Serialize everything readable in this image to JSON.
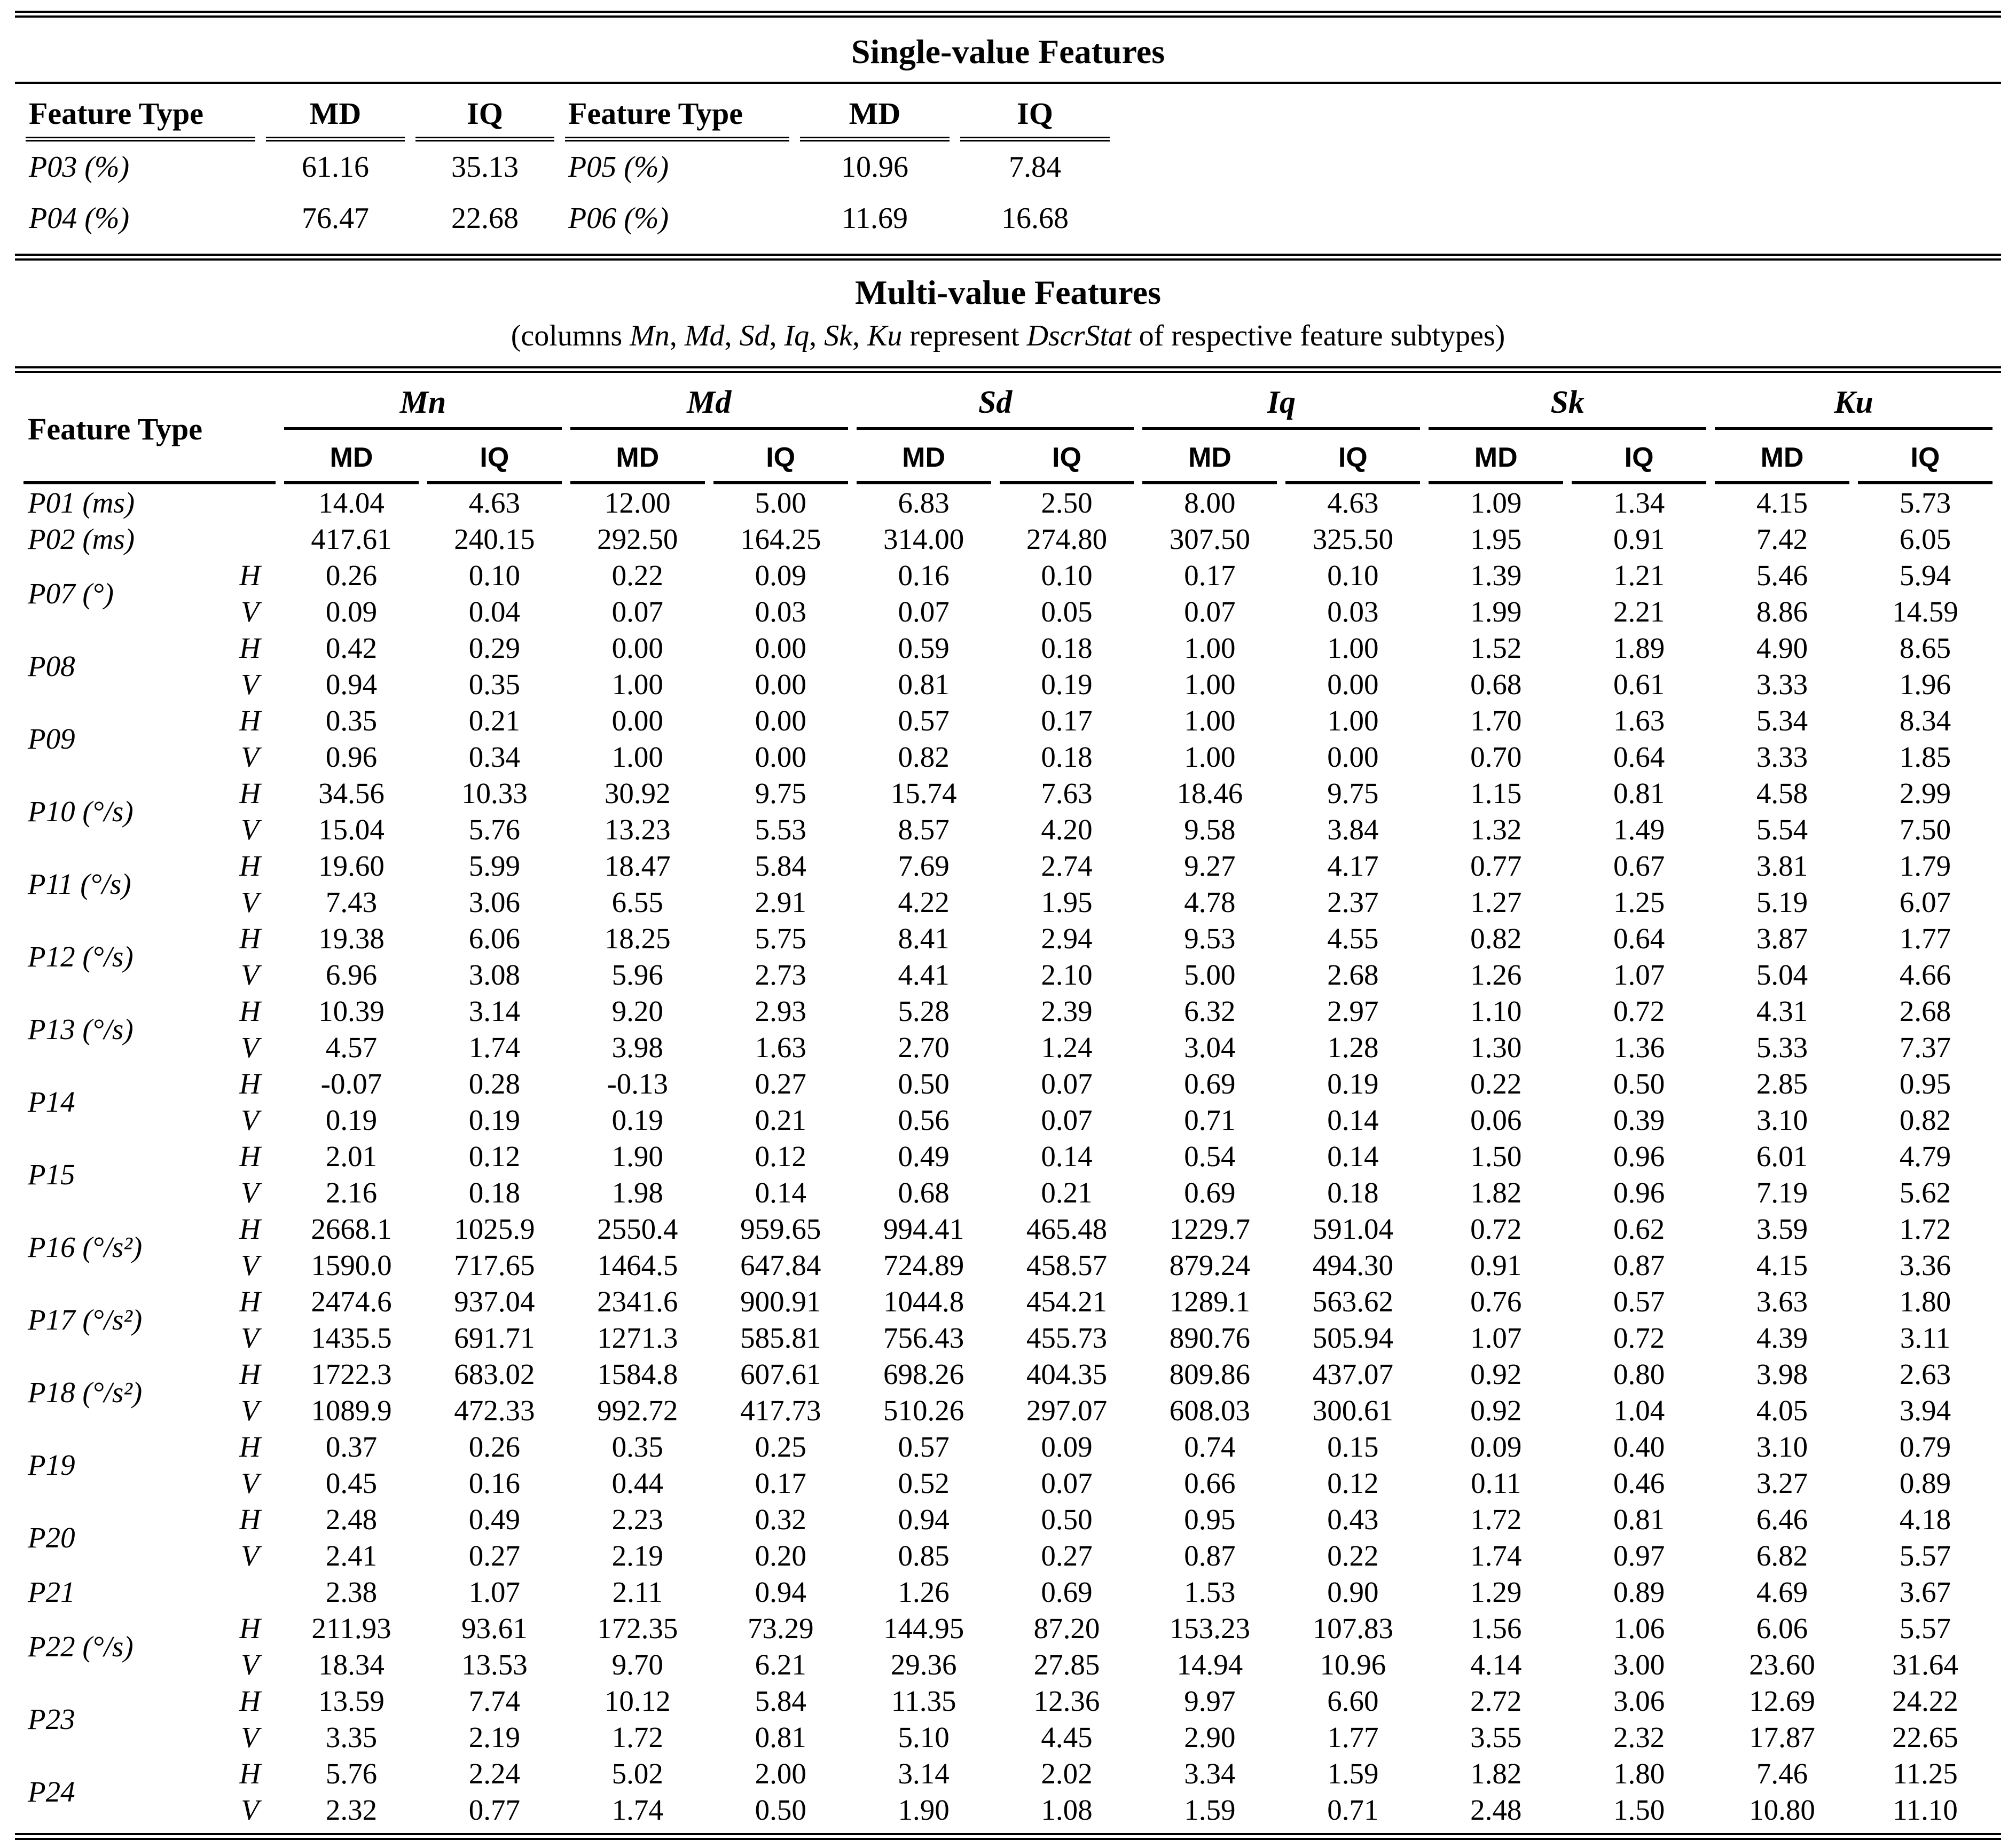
{
  "single_value": {
    "title": "Single-value Features",
    "header": [
      "Feature Type",
      "MD",
      "IQ",
      "Feature Type",
      "MD",
      "IQ"
    ],
    "rows": [
      [
        "P03 (%)",
        "61.16",
        "35.13",
        "P05 (%)",
        "10.96",
        "7.84"
      ],
      [
        "P04 (%)",
        "76.47",
        "22.68",
        "P06 (%)",
        "11.69",
        "16.68"
      ]
    ]
  },
  "multi_value": {
    "title": "Multi-value Features",
    "subtitle_segments": [
      {
        "text": "(columns ",
        "italic": false
      },
      {
        "text": "Mn",
        "italic": true
      },
      {
        "text": ", ",
        "italic": false
      },
      {
        "text": "Md",
        "italic": true
      },
      {
        "text": ", ",
        "italic": false
      },
      {
        "text": "Sd",
        "italic": true
      },
      {
        "text": ", ",
        "italic": false
      },
      {
        "text": "Iq",
        "italic": true
      },
      {
        "text": ", ",
        "italic": false
      },
      {
        "text": "Sk",
        "italic": true
      },
      {
        "text": ", ",
        "italic": false
      },
      {
        "text": "Ku",
        "italic": true
      },
      {
        "text": " represent ",
        "italic": false
      },
      {
        "text": "DscrStat",
        "italic": true
      },
      {
        "text": " of respective feature subtypes)",
        "italic": false
      }
    ],
    "feature_type_header": "Feature Type",
    "groups": [
      "Mn",
      "Md",
      "Sd",
      "Iq",
      "Sk",
      "Ku"
    ],
    "subcolumns": [
      "MD",
      "IQ"
    ],
    "row_groups": [
      {
        "feature": "P01 (ms)",
        "rows": [
          {
            "sub": "",
            "values": [
              "14.04",
              "4.63",
              "12.00",
              "5.00",
              "6.83",
              "2.50",
              "8.00",
              "4.63",
              "1.09",
              "1.34",
              "4.15",
              "5.73"
            ]
          }
        ]
      },
      {
        "feature": "P02 (ms)",
        "rows": [
          {
            "sub": "",
            "values": [
              "417.61",
              "240.15",
              "292.50",
              "164.25",
              "314.00",
              "274.80",
              "307.50",
              "325.50",
              "1.95",
              "0.91",
              "7.42",
              "6.05"
            ]
          }
        ]
      },
      {
        "feature": "P07 (°)",
        "rows": [
          {
            "sub": "H",
            "values": [
              "0.26",
              "0.10",
              "0.22",
              "0.09",
              "0.16",
              "0.10",
              "0.17",
              "0.10",
              "1.39",
              "1.21",
              "5.46",
              "5.94"
            ]
          },
          {
            "sub": "V",
            "values": [
              "0.09",
              "0.04",
              "0.07",
              "0.03",
              "0.07",
              "0.05",
              "0.07",
              "0.03",
              "1.99",
              "2.21",
              "8.86",
              "14.59"
            ]
          }
        ]
      },
      {
        "feature": "P08",
        "rows": [
          {
            "sub": "H",
            "values": [
              "0.42",
              "0.29",
              "0.00",
              "0.00",
              "0.59",
              "0.18",
              "1.00",
              "1.00",
              "1.52",
              "1.89",
              "4.90",
              "8.65"
            ]
          },
          {
            "sub": "V",
            "values": [
              "0.94",
              "0.35",
              "1.00",
              "0.00",
              "0.81",
              "0.19",
              "1.00",
              "0.00",
              "0.68",
              "0.61",
              "3.33",
              "1.96"
            ]
          }
        ]
      },
      {
        "feature": "P09",
        "rows": [
          {
            "sub": "H",
            "values": [
              "0.35",
              "0.21",
              "0.00",
              "0.00",
              "0.57",
              "0.17",
              "1.00",
              "1.00",
              "1.70",
              "1.63",
              "5.34",
              "8.34"
            ]
          },
          {
            "sub": "V",
            "values": [
              "0.96",
              "0.34",
              "1.00",
              "0.00",
              "0.82",
              "0.18",
              "1.00",
              "0.00",
              "0.70",
              "0.64",
              "3.33",
              "1.85"
            ]
          }
        ]
      },
      {
        "feature": "P10 (°/s)",
        "rows": [
          {
            "sub": "H",
            "values": [
              "34.56",
              "10.33",
              "30.92",
              "9.75",
              "15.74",
              "7.63",
              "18.46",
              "9.75",
              "1.15",
              "0.81",
              "4.58",
              "2.99"
            ]
          },
          {
            "sub": "V",
            "values": [
              "15.04",
              "5.76",
              "13.23",
              "5.53",
              "8.57",
              "4.20",
              "9.58",
              "3.84",
              "1.32",
              "1.49",
              "5.54",
              "7.50"
            ]
          }
        ]
      },
      {
        "feature": "P11 (°/s)",
        "rows": [
          {
            "sub": "H",
            "values": [
              "19.60",
              "5.99",
              "18.47",
              "5.84",
              "7.69",
              "2.74",
              "9.27",
              "4.17",
              "0.77",
              "0.67",
              "3.81",
              "1.79"
            ]
          },
          {
            "sub": "V",
            "values": [
              "7.43",
              "3.06",
              "6.55",
              "2.91",
              "4.22",
              "1.95",
              "4.78",
              "2.37",
              "1.27",
              "1.25",
              "5.19",
              "6.07"
            ]
          }
        ]
      },
      {
        "feature": "P12 (°/s)",
        "rows": [
          {
            "sub": "H",
            "values": [
              "19.38",
              "6.06",
              "18.25",
              "5.75",
              "8.41",
              "2.94",
              "9.53",
              "4.55",
              "0.82",
              "0.64",
              "3.87",
              "1.77"
            ]
          },
          {
            "sub": "V",
            "values": [
              "6.96",
              "3.08",
              "5.96",
              "2.73",
              "4.41",
              "2.10",
              "5.00",
              "2.68",
              "1.26",
              "1.07",
              "5.04",
              "4.66"
            ]
          }
        ]
      },
      {
        "feature": "P13 (°/s)",
        "rows": [
          {
            "sub": "H",
            "values": [
              "10.39",
              "3.14",
              "9.20",
              "2.93",
              "5.28",
              "2.39",
              "6.32",
              "2.97",
              "1.10",
              "0.72",
              "4.31",
              "2.68"
            ]
          },
          {
            "sub": "V",
            "values": [
              "4.57",
              "1.74",
              "3.98",
              "1.63",
              "2.70",
              "1.24",
              "3.04",
              "1.28",
              "1.30",
              "1.36",
              "5.33",
              "7.37"
            ]
          }
        ]
      },
      {
        "feature": "P14",
        "rows": [
          {
            "sub": "H",
            "values": [
              "-0.07",
              "0.28",
              "-0.13",
              "0.27",
              "0.50",
              "0.07",
              "0.69",
              "0.19",
              "0.22",
              "0.50",
              "2.85",
              "0.95"
            ]
          },
          {
            "sub": "V",
            "values": [
              "0.19",
              "0.19",
              "0.19",
              "0.21",
              "0.56",
              "0.07",
              "0.71",
              "0.14",
              "0.06",
              "0.39",
              "3.10",
              "0.82"
            ]
          }
        ]
      },
      {
        "feature": "P15",
        "rows": [
          {
            "sub": "H",
            "values": [
              "2.01",
              "0.12",
              "1.90",
              "0.12",
              "0.49",
              "0.14",
              "0.54",
              "0.14",
              "1.50",
              "0.96",
              "6.01",
              "4.79"
            ]
          },
          {
            "sub": "V",
            "values": [
              "2.16",
              "0.18",
              "1.98",
              "0.14",
              "0.68",
              "0.21",
              "0.69",
              "0.18",
              "1.82",
              "0.96",
              "7.19",
              "5.62"
            ]
          }
        ]
      },
      {
        "feature": "P16 (°/s²)",
        "rows": [
          {
            "sub": "H",
            "values": [
              "2668.1",
              "1025.9",
              "2550.4",
              "959.65",
              "994.41",
              "465.48",
              "1229.7",
              "591.04",
              "0.72",
              "0.62",
              "3.59",
              "1.72"
            ]
          },
          {
            "sub": "V",
            "values": [
              "1590.0",
              "717.65",
              "1464.5",
              "647.84",
              "724.89",
              "458.57",
              "879.24",
              "494.30",
              "0.91",
              "0.87",
              "4.15",
              "3.36"
            ]
          }
        ]
      },
      {
        "feature": "P17 (°/s²)",
        "rows": [
          {
            "sub": "H",
            "values": [
              "2474.6",
              "937.04",
              "2341.6",
              "900.91",
              "1044.8",
              "454.21",
              "1289.1",
              "563.62",
              "0.76",
              "0.57",
              "3.63",
              "1.80"
            ]
          },
          {
            "sub": "V",
            "values": [
              "1435.5",
              "691.71",
              "1271.3",
              "585.81",
              "756.43",
              "455.73",
              "890.76",
              "505.94",
              "1.07",
              "0.72",
              "4.39",
              "3.11"
            ]
          }
        ]
      },
      {
        "feature": "P18 (°/s²)",
        "rows": [
          {
            "sub": "H",
            "values": [
              "1722.3",
              "683.02",
              "1584.8",
              "607.61",
              "698.26",
              "404.35",
              "809.86",
              "437.07",
              "0.92",
              "0.80",
              "3.98",
              "2.63"
            ]
          },
          {
            "sub": "V",
            "values": [
              "1089.9",
              "472.33",
              "992.72",
              "417.73",
              "510.26",
              "297.07",
              "608.03",
              "300.61",
              "0.92",
              "1.04",
              "4.05",
              "3.94"
            ]
          }
        ]
      },
      {
        "feature": "P19",
        "rows": [
          {
            "sub": "H",
            "values": [
              "0.37",
              "0.26",
              "0.35",
              "0.25",
              "0.57",
              "0.09",
              "0.74",
              "0.15",
              "0.09",
              "0.40",
              "3.10",
              "0.79"
            ]
          },
          {
            "sub": "V",
            "values": [
              "0.45",
              "0.16",
              "0.44",
              "0.17",
              "0.52",
              "0.07",
              "0.66",
              "0.12",
              "0.11",
              "0.46",
              "3.27",
              "0.89"
            ]
          }
        ]
      },
      {
        "feature": "P20",
        "rows": [
          {
            "sub": "H",
            "values": [
              "2.48",
              "0.49",
              "2.23",
              "0.32",
              "0.94",
              "0.50",
              "0.95",
              "0.43",
              "1.72",
              "0.81",
              "6.46",
              "4.18"
            ]
          },
          {
            "sub": "V",
            "values": [
              "2.41",
              "0.27",
              "2.19",
              "0.20",
              "0.85",
              "0.27",
              "0.87",
              "0.22",
              "1.74",
              "0.97",
              "6.82",
              "5.57"
            ]
          }
        ]
      },
      {
        "feature": "P21",
        "rows": [
          {
            "sub": "",
            "values": [
              "2.38",
              "1.07",
              "2.11",
              "0.94",
              "1.26",
              "0.69",
              "1.53",
              "0.90",
              "1.29",
              "0.89",
              "4.69",
              "3.67"
            ]
          }
        ]
      },
      {
        "feature": "P22 (°/s)",
        "rows": [
          {
            "sub": "H",
            "values": [
              "211.93",
              "93.61",
              "172.35",
              "73.29",
              "144.95",
              "87.20",
              "153.23",
              "107.83",
              "1.56",
              "1.06",
              "6.06",
              "5.57"
            ]
          },
          {
            "sub": "V",
            "values": [
              "18.34",
              "13.53",
              "9.70",
              "6.21",
              "29.36",
              "27.85",
              "14.94",
              "10.96",
              "4.14",
              "3.00",
              "23.60",
              "31.64"
            ]
          }
        ]
      },
      {
        "feature": "P23",
        "rows": [
          {
            "sub": "H",
            "values": [
              "13.59",
              "7.74",
              "10.12",
              "5.84",
              "11.35",
              "12.36",
              "9.97",
              "6.60",
              "2.72",
              "3.06",
              "12.69",
              "24.22"
            ]
          },
          {
            "sub": "V",
            "values": [
              "3.35",
              "2.19",
              "1.72",
              "0.81",
              "5.10",
              "4.45",
              "2.90",
              "1.77",
              "3.55",
              "2.32",
              "17.87",
              "22.65"
            ]
          }
        ]
      },
      {
        "feature": "P24",
        "rows": [
          {
            "sub": "H",
            "values": [
              "5.76",
              "2.24",
              "5.02",
              "2.00",
              "3.14",
              "2.02",
              "3.34",
              "1.59",
              "1.82",
              "1.80",
              "7.46",
              "11.25"
            ]
          },
          {
            "sub": "V",
            "values": [
              "2.32",
              "0.77",
              "1.74",
              "0.50",
              "1.90",
              "1.08",
              "1.59",
              "0.71",
              "2.48",
              "1.50",
              "10.80",
              "11.10"
            ]
          }
        ]
      }
    ]
  }
}
